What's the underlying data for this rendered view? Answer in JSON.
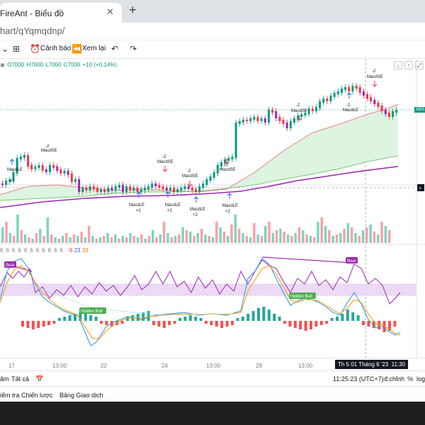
{
  "browser": {
    "tab_title": "FireAnt - Biểu đồ",
    "url": "hart/qYqmqdnp/"
  },
  "toolbar": {
    "alert_label": "Cảnh báo",
    "replay_label": "Xem lại"
  },
  "legend": {
    "open": "O7000",
    "high": "H7000",
    "low": "L7000",
    "close": "C7000",
    "change": "+10 (+0.14%)"
  },
  "price_tag": "ABS",
  "oscillator": {
    "params": [
      "6",
      "6",
      "6",
      "6",
      "6",
      "6",
      "6",
      "6",
      "6",
      "6",
      "6"
    ],
    "param_a": "-9",
    "param_b": "23",
    "param_c": "33",
    "bear_label": "Bear",
    "hidden_bull_label": "Hidden Bull"
  },
  "signals": {
    "short": "MacdSE",
    "long": "MacdLE",
    "minus_two": "-2",
    "plus_two": "+2"
  },
  "time_axis": {
    "labels": [
      "17",
      "13:00",
      "22",
      "24",
      "13:00",
      "29",
      "13:00",
      "Th 5 01 Tháng 6 '23",
      "11:30"
    ]
  },
  "bottom_bar": {
    "range": "ăm",
    "all": "Tất cả",
    "clock": "11:25:23 (UTC+7)",
    "adjust": "đ.chỉnh",
    "percent": "%",
    "log": "log"
  },
  "panels": {
    "strategy_tester": "iểm tra Chiến lược",
    "trading_panel": "Bảng Giao dịch"
  },
  "colors": {
    "up": "#089981",
    "down": "#f23645",
    "bear": "#9c27b0",
    "hidden_bull": "#4caf50"
  }
}
